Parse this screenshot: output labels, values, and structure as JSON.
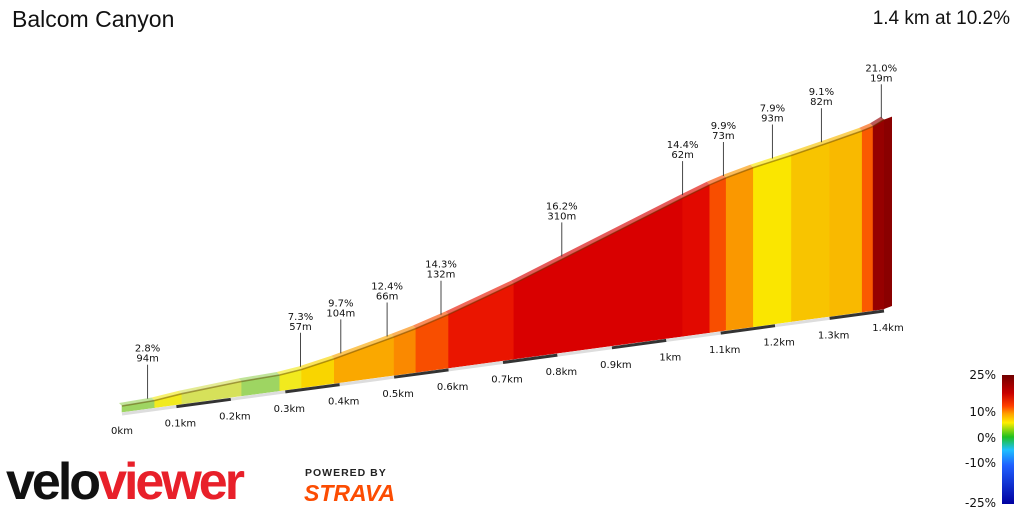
{
  "header": {
    "title": "Balcom Canyon",
    "summary": "1.4 km at 10.2%"
  },
  "chart_data": {
    "type": "area",
    "title": "Balcom Canyon",
    "xlabel": "",
    "ylabel": "",
    "x_ticks": [
      "0km",
      "0.1km",
      "0.2km",
      "0.3km",
      "0.4km",
      "0.5km",
      "0.6km",
      "0.7km",
      "0.8km",
      "0.9km",
      "1km",
      "1.1km",
      "1.2km",
      "1.3km",
      "1.4km"
    ],
    "x_tick_values": [
      0,
      0.1,
      0.2,
      0.3,
      0.4,
      0.5,
      0.6,
      0.7,
      0.8,
      0.9,
      1.0,
      1.1,
      1.2,
      1.3,
      1.4
    ],
    "segments": [
      {
        "start_km": 0.0,
        "end_km": 0.06,
        "gradient": 1.5
      },
      {
        "start_km": 0.06,
        "end_km": 0.11,
        "gradient": 5.0
      },
      {
        "start_km": 0.11,
        "end_km": 0.22,
        "gradient": 3.0
      },
      {
        "start_km": 0.22,
        "end_km": 0.29,
        "gradient": 1.5
      },
      {
        "start_km": 0.29,
        "end_km": 0.33,
        "gradient": 5.0
      },
      {
        "start_km": 0.33,
        "end_km": 0.39,
        "gradient": 8.5
      },
      {
        "start_km": 0.39,
        "end_km": 0.5,
        "gradient": 10.0
      },
      {
        "start_km": 0.5,
        "end_km": 0.54,
        "gradient": 11.0
      },
      {
        "start_km": 0.54,
        "end_km": 0.6,
        "gradient": 12.8
      },
      {
        "start_km": 0.6,
        "end_km": 0.72,
        "gradient": 14.6
      },
      {
        "start_km": 0.72,
        "end_km": 1.03,
        "gradient": 16.2
      },
      {
        "start_km": 1.03,
        "end_km": 1.08,
        "gradient": 15.4
      },
      {
        "start_km": 1.08,
        "end_km": 1.11,
        "gradient": 12.8
      },
      {
        "start_km": 1.11,
        "end_km": 1.16,
        "gradient": 10.5
      },
      {
        "start_km": 1.16,
        "end_km": 1.23,
        "gradient": 8.0
      },
      {
        "start_km": 1.23,
        "end_km": 1.3,
        "gradient": 9.0
      },
      {
        "start_km": 1.3,
        "end_km": 1.36,
        "gradient": 9.4
      },
      {
        "start_km": 1.36,
        "end_km": 1.38,
        "gradient": 12.5
      },
      {
        "start_km": 1.38,
        "end_km": 1.4,
        "gradient": 21.0
      }
    ],
    "annotations": [
      {
        "km": 0.047,
        "gradient_label": "2.8%",
        "length_label": "94m"
      },
      {
        "km": 0.328,
        "gradient_label": "7.3%",
        "length_label": "57m"
      },
      {
        "km": 0.402,
        "gradient_label": "9.7%",
        "length_label": "104m"
      },
      {
        "km": 0.487,
        "gradient_label": "12.4%",
        "length_label": "66m"
      },
      {
        "km": 0.586,
        "gradient_label": "14.3%",
        "length_label": "132m"
      },
      {
        "km": 0.808,
        "gradient_label": "16.2%",
        "length_label": "310m"
      },
      {
        "km": 1.03,
        "gradient_label": "14.4%",
        "length_label": "62m"
      },
      {
        "km": 1.105,
        "gradient_label": "9.9%",
        "length_label": "73m"
      },
      {
        "km": 1.195,
        "gradient_label": "7.9%",
        "length_label": "93m"
      },
      {
        "km": 1.285,
        "gradient_label": "9.1%",
        "length_label": "82m"
      },
      {
        "km": 1.395,
        "gradient_label": "21.0%",
        "length_label": "19m"
      }
    ],
    "color_scale": {
      "labels": [
        "25%",
        "10%",
        "0%",
        "-10%",
        "-25%"
      ],
      "values": [
        25,
        10,
        0,
        -10,
        -25
      ]
    }
  },
  "branding": {
    "logo_part1": "velo",
    "logo_part2": "viewer",
    "powered_by": "POWERED BY",
    "strava": "STRAVA"
  }
}
